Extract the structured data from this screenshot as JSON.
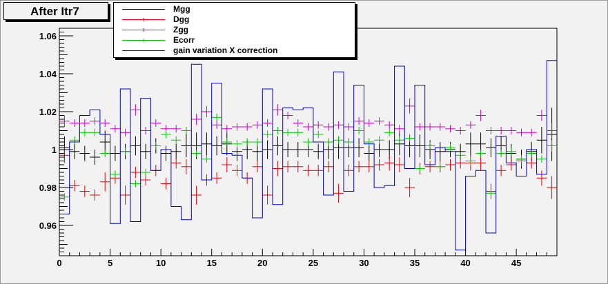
{
  "window": {
    "title": "After Itr7"
  },
  "chart_data": {
    "type": "line",
    "title": "After Itr7",
    "xlabel": "",
    "ylabel": "",
    "xlim": [
      0,
      49
    ],
    "ylim": [
      0.944,
      1.064
    ],
    "xticks": [
      0,
      5,
      10,
      15,
      20,
      25,
      30,
      35,
      40,
      45
    ],
    "xtick_labels": [
      "0",
      "5",
      "10",
      "15",
      "20",
      "25",
      "30",
      "35",
      "40",
      "45"
    ],
    "yticks": [
      0.96,
      0.98,
      1.0,
      1.02,
      1.04,
      1.06
    ],
    "ytick_labels": [
      "0.96",
      "0.98",
      "1",
      "1.02",
      "1.04",
      "1.06"
    ],
    "grid": false,
    "legend_position": "top",
    "series": [
      {
        "name": "Mgg",
        "color": "#000000",
        "style": "errorbar",
        "x": [
          0.5,
          1.5,
          2.5,
          3.5,
          4.5,
          5.5,
          6.5,
          7.5,
          8.5,
          9.5,
          10.5,
          11.5,
          12.5,
          13.5,
          14.5,
          15.5,
          16.5,
          17.5,
          18.5,
          19.5,
          20.5,
          21.5,
          22.5,
          23.5,
          24.5,
          25.5,
          26.5,
          27.5,
          28.5,
          29.5,
          30.5,
          31.5,
          32.5,
          33.5,
          34.5,
          35.5,
          36.5,
          37.5,
          38.5,
          39.5,
          40.5,
          41.5,
          42.5,
          43.5,
          44.5,
          45.5,
          46.5,
          47.5,
          48.5
        ],
        "y": [
          1.001,
          0.999,
          0.998,
          0.996,
          1.004,
          0.998,
          0.999,
          1.002,
          0.999,
          1.002,
          0.998,
          0.999,
          1.002,
          1.002,
          1.003,
          1.002,
          1.003,
          0.999,
          1.0,
          0.999,
          1.0,
          1.002,
          1.0,
          1.0,
          1.0,
          0.999,
          1.0,
          1.001,
          1.001,
          1.001,
          0.998,
          1.0,
          1.0,
          1.003,
          1.002,
          1.002,
          1.0,
          0.999,
          1.0,
          0.999,
          1.003,
          1.003,
          1.001,
          1.002,
          0.998,
          0.995,
          0.999,
          1.005,
          1.008
        ],
        "err": [
          0.006,
          0.004,
          0.004,
          0.004,
          0.006,
          0.004,
          0.004,
          0.005,
          0.004,
          0.004,
          0.004,
          0.004,
          0.006,
          0.007,
          0.006,
          0.005,
          0.006,
          0.005,
          0.005,
          0.005,
          0.005,
          0.005,
          0.004,
          0.004,
          0.004,
          0.004,
          0.005,
          0.006,
          0.005,
          0.005,
          0.004,
          0.004,
          0.005,
          0.006,
          0.006,
          0.006,
          0.005,
          0.005,
          0.004,
          0.004,
          0.006,
          0.006,
          0.005,
          0.005,
          0.005,
          0.005,
          0.005,
          0.007,
          0.014
        ]
      },
      {
        "name": "Dgg",
        "color": "#e8000b",
        "style": "errorbar",
        "x": [
          0.5,
          1.5,
          2.5,
          3.5,
          4.5,
          5.5,
          6.5,
          7.5,
          8.5,
          9.5,
          10.5,
          11.5,
          12.5,
          13.5,
          14.5,
          15.5,
          16.5,
          17.5,
          18.5,
          19.5,
          20.5,
          21.5,
          22.5,
          23.5,
          24.5,
          25.5,
          26.5,
          27.5,
          28.5,
          29.5,
          30.5,
          31.5,
          32.5,
          33.5,
          34.5,
          35.5,
          36.5,
          37.5,
          38.5,
          39.5,
          40.5,
          41.5,
          42.5,
          43.5,
          44.5,
          45.5,
          46.5,
          47.5,
          48.5
        ],
        "y": [
          0.997,
          0.981,
          0.978,
          0.976,
          0.983,
          0.985,
          0.976,
          0.988,
          0.984,
          0.989,
          0.982,
          0.993,
          0.991,
          0.976,
          0.984,
          0.985,
          0.992,
          0.989,
          0.985,
          0.991,
          0.976,
          0.99,
          0.991,
          0.991,
          0.989,
          0.989,
          0.991,
          0.977,
          0.989,
          0.991,
          0.991,
          0.992,
          0.993,
          0.992,
          0.98,
          0.99,
          0.991,
          0.991,
          0.992,
          0.993,
          0.993,
          0.993,
          0.978,
          0.989,
          0.992,
          0.994,
          0.993,
          0.985,
          0.98
        ],
        "err": [
          0.004,
          0.003,
          0.003,
          0.003,
          0.005,
          0.003,
          0.005,
          0.003,
          0.003,
          0.003,
          0.003,
          0.003,
          0.004,
          0.005,
          0.003,
          0.003,
          0.004,
          0.003,
          0.003,
          0.003,
          0.005,
          0.004,
          0.003,
          0.003,
          0.003,
          0.003,
          0.003,
          0.005,
          0.003,
          0.003,
          0.003,
          0.003,
          0.004,
          0.004,
          0.005,
          0.003,
          0.003,
          0.003,
          0.003,
          0.003,
          0.004,
          0.004,
          0.004,
          0.003,
          0.003,
          0.003,
          0.003,
          0.004,
          0.006
        ]
      },
      {
        "name": "Zgg",
        "color": "#cc00cc",
        "style": "errorbar",
        "x": [
          0.5,
          1.5,
          2.5,
          3.5,
          4.5,
          5.5,
          6.5,
          7.5,
          8.5,
          9.5,
          10.5,
          11.5,
          12.5,
          13.5,
          14.5,
          15.5,
          16.5,
          17.5,
          18.5,
          19.5,
          20.5,
          21.5,
          22.5,
          23.5,
          24.5,
          25.5,
          26.5,
          27.5,
          28.5,
          29.5,
          30.5,
          31.5,
          32.5,
          33.5,
          34.5,
          35.5,
          36.5,
          37.5,
          38.5,
          39.5,
          40.5,
          41.5,
          42.5,
          43.5,
          44.5,
          45.5,
          46.5,
          47.5,
          48.5
        ],
        "y": [
          1.015,
          1.014,
          1.014,
          1.015,
          1.014,
          1.011,
          1.009,
          1.021,
          1.01,
          1.014,
          1.011,
          1.011,
          1.01,
          1.016,
          1.02,
          1.013,
          1.011,
          1.012,
          1.012,
          1.013,
          1.014,
          1.021,
          1.018,
          1.014,
          1.012,
          1.013,
          1.012,
          1.013,
          1.012,
          1.015,
          1.014,
          1.015,
          1.013,
          1.011,
          1.023,
          1.012,
          1.012,
          1.012,
          1.011,
          1.01,
          1.013,
          1.018,
          1.01,
          1.01,
          1.01,
          1.009,
          1.009,
          1.018,
          1.01
        ],
        "err": [
          0.003,
          0.002,
          0.002,
          0.002,
          0.002,
          0.002,
          0.002,
          0.003,
          0.002,
          0.002,
          0.002,
          0.002,
          0.002,
          0.003,
          0.003,
          0.002,
          0.002,
          0.002,
          0.002,
          0.002,
          0.002,
          0.003,
          0.002,
          0.002,
          0.002,
          0.002,
          0.002,
          0.002,
          0.002,
          0.002,
          0.002,
          0.002,
          0.002,
          0.002,
          0.004,
          0.002,
          0.002,
          0.002,
          0.002,
          0.002,
          0.002,
          0.003,
          0.002,
          0.002,
          0.002,
          0.002,
          0.002,
          0.003,
          0.004
        ]
      },
      {
        "name": "Ecorr",
        "color": "#00cc00",
        "style": "errorbar",
        "x": [
          0.5,
          1.5,
          2.5,
          3.5,
          4.5,
          5.5,
          6.5,
          7.5,
          8.5,
          9.5,
          10.5,
          11.5,
          12.5,
          13.5,
          14.5,
          15.5,
          16.5,
          17.5,
          18.5,
          19.5,
          20.5,
          21.5,
          22.5,
          23.5,
          24.5,
          25.5,
          26.5,
          27.5,
          28.5,
          29.5,
          30.5,
          31.5,
          32.5,
          33.5,
          34.5,
          35.5,
          36.5,
          37.5,
          38.5,
          39.5,
          40.5,
          41.5,
          42.5,
          43.5,
          44.5,
          45.5,
          46.5,
          47.5,
          48.5
        ],
        "y": [
          0.975,
          1.005,
          1.009,
          1.009,
          0.998,
          0.987,
          0.999,
          0.982,
          0.988,
          1.002,
          1.008,
          1.005,
          1.01,
          0.998,
          0.995,
          1.017,
          1.004,
          1.003,
          1.004,
          1.004,
          1.008,
          1.01,
          1.009,
          1.009,
          1.004,
          1.008,
          1.004,
          1.005,
          1.004,
          1.01,
          1.004,
          1.005,
          1.009,
          1.005,
          1.006,
          0.99,
          1.002,
          0.991,
          1.001,
          0.997,
          0.994,
          0.998,
          0.977,
          0.998,
          0.999,
          0.995,
          0.998,
          0.995,
          1.002
        ],
        "err": [
          0.002,
          0.002,
          0.002,
          0.002,
          0.002,
          0.002,
          0.002,
          0.002,
          0.002,
          0.002,
          0.002,
          0.002,
          0.002,
          0.002,
          0.002,
          0.002,
          0.002,
          0.002,
          0.002,
          0.002,
          0.002,
          0.002,
          0.002,
          0.002,
          0.002,
          0.002,
          0.002,
          0.002,
          0.002,
          0.002,
          0.002,
          0.002,
          0.002,
          0.002,
          0.002,
          0.002,
          0.002,
          0.002,
          0.002,
          0.002,
          0.002,
          0.002,
          0.002,
          0.002,
          0.002,
          0.002,
          0.002,
          0.002,
          0.003
        ]
      },
      {
        "name": "gain variation X correction",
        "color": "#0000cc",
        "style": "step",
        "edges": [
          0,
          1,
          2,
          3,
          4,
          5,
          6,
          7,
          8,
          9,
          10,
          11,
          12,
          13,
          14,
          15,
          16,
          17,
          18,
          19,
          20,
          21,
          22,
          23,
          24,
          25,
          26,
          27,
          28,
          29,
          30,
          31,
          32,
          33,
          34,
          35,
          36,
          37,
          38,
          39,
          40,
          41,
          42,
          43,
          44,
          45,
          46,
          47,
          48,
          49
        ],
        "values": [
          0.966,
          1.004,
          1.018,
          1.021,
          1.008,
          0.961,
          1.032,
          0.962,
          1.027,
          0.989,
          1.0,
          0.97,
          0.963,
          1.045,
          0.984,
          1.035,
          0.998,
          0.997,
          0.985,
          0.964,
          1.032,
          0.971,
          1.022,
          1.021,
          1.022,
          1.004,
          0.976,
          1.041,
          0.978,
          1.034,
          1.003,
          0.98,
          0.981,
          1.044,
          0.99,
          1.034,
          0.992,
          1.001,
          0.999,
          0.947,
          0.986,
          0.989,
          0.956,
          1.007,
          0.993,
          0.986,
          1.0,
          0.987,
          1.047
        ]
      }
    ]
  }
}
